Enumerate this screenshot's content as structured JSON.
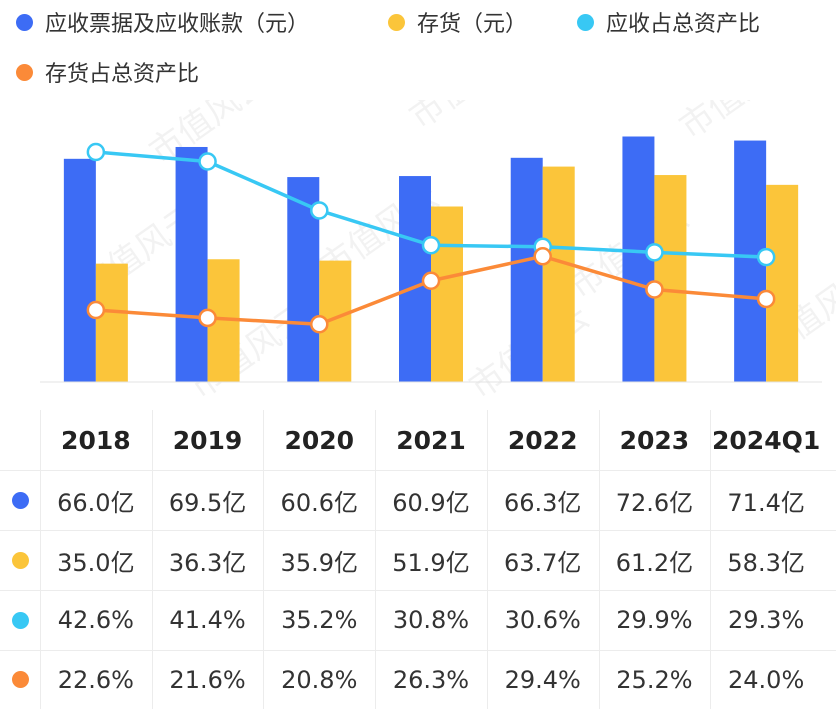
{
  "legend": [
    {
      "label": "应收票据及应收账款（元）",
      "color": "#3d6cf5"
    },
    {
      "label": "存货（元）",
      "color": "#fbc53a"
    },
    {
      "label": "应收占总资产比",
      "color": "#38c8f4"
    },
    {
      "label": "存货占总资产比",
      "color": "#fb8a38"
    }
  ],
  "chart_data": {
    "type": "bar",
    "categories": [
      "2018",
      "2019",
      "2020",
      "2021",
      "2022",
      "2023",
      "2024Q1"
    ],
    "series": [
      {
        "name": "应收票据及应收账款（元）",
        "type": "bar",
        "color": "#3d6cf5",
        "values": [
          66.0,
          69.5,
          60.6,
          60.9,
          66.3,
          72.6,
          71.4
        ],
        "labels": [
          "66.0亿",
          "69.5亿",
          "60.6亿",
          "60.9亿",
          "66.3亿",
          "72.6亿",
          "71.4亿"
        ]
      },
      {
        "name": "存货（元）",
        "type": "bar",
        "color": "#fbc53a",
        "values": [
          35.0,
          36.3,
          35.9,
          51.9,
          63.7,
          61.2,
          58.3
        ],
        "labels": [
          "35.0亿",
          "36.3亿",
          "35.9亿",
          "51.9亿",
          "63.7亿",
          "61.2亿",
          "58.3亿"
        ]
      },
      {
        "name": "应收占总资产比",
        "type": "line",
        "color": "#38c8f4",
        "values": [
          42.6,
          41.4,
          35.2,
          30.8,
          30.6,
          29.9,
          29.3
        ],
        "labels": [
          "42.6%",
          "41.4%",
          "35.2%",
          "30.8%",
          "30.6%",
          "29.9%",
          "29.3%"
        ]
      },
      {
        "name": "存货占总资产比",
        "type": "line",
        "color": "#fb8a38",
        "values": [
          22.6,
          21.6,
          20.8,
          26.3,
          29.4,
          25.2,
          24.0
        ],
        "labels": [
          "22.6%",
          "21.6%",
          "20.8%",
          "26.3%",
          "29.4%",
          "25.2%",
          "24.0%"
        ]
      }
    ],
    "watermark": "市值风云"
  }
}
